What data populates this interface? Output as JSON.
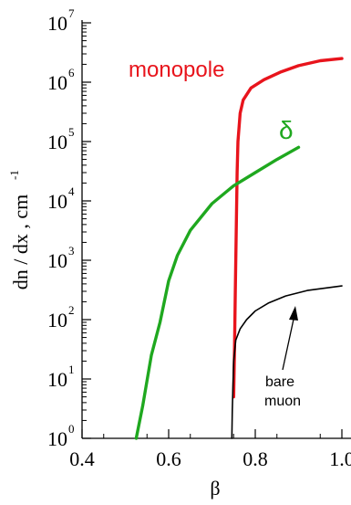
{
  "chart_data": {
    "type": "line",
    "title": "",
    "xlabel": "β",
    "ylabel": "dn / dx , cm",
    "ylabel_exponent": "-1",
    "xlim": [
      0.4,
      1.0
    ],
    "ylim_log10": [
      0,
      7
    ],
    "y_scale": "log",
    "x_tick_labels": [
      "0.4",
      "0.6",
      "0.8",
      "1.0"
    ],
    "y_ticks": [
      {
        "base": "10",
        "exp": "0"
      },
      {
        "base": "10",
        "exp": "1"
      },
      {
        "base": "10",
        "exp": "2"
      },
      {
        "base": "10",
        "exp": "3"
      },
      {
        "base": "10",
        "exp": "4"
      },
      {
        "base": "10",
        "exp": "5"
      },
      {
        "base": "10",
        "exp": "6"
      },
      {
        "base": "10",
        "exp": "7"
      }
    ],
    "grid": false,
    "series": [
      {
        "name": "monopole",
        "color": "#e8141c",
        "points": [
          [
            0.75,
            5.0
          ],
          [
            0.752,
            30
          ],
          [
            0.754,
            300
          ],
          [
            0.756,
            3000
          ],
          [
            0.758,
            30000
          ],
          [
            0.76,
            100000
          ],
          [
            0.765,
            300000
          ],
          [
            0.772,
            500000
          ],
          [
            0.79,
            800000
          ],
          [
            0.82,
            1100000
          ],
          [
            0.86,
            1500000
          ],
          [
            0.9,
            1900000
          ],
          [
            0.95,
            2300000
          ],
          [
            1.0,
            2500000
          ]
        ]
      },
      {
        "name": "δ",
        "color": "#1fa81f",
        "points": [
          [
            0.525,
            1.0
          ],
          [
            0.54,
            3.5
          ],
          [
            0.56,
            25
          ],
          [
            0.58,
            90
          ],
          [
            0.6,
            450
          ],
          [
            0.62,
            1200
          ],
          [
            0.65,
            3200
          ],
          [
            0.7,
            9000
          ],
          [
            0.75,
            18000
          ],
          [
            0.8,
            30000
          ],
          [
            0.85,
            50000
          ],
          [
            0.9,
            80000
          ]
        ]
      },
      {
        "name": "bare muon",
        "color": "#000000",
        "points": [
          [
            0.746,
            1.0
          ],
          [
            0.747,
            3
          ],
          [
            0.75,
            20
          ],
          [
            0.755,
            45
          ],
          [
            0.765,
            70
          ],
          [
            0.78,
            100
          ],
          [
            0.8,
            140
          ],
          [
            0.83,
            190
          ],
          [
            0.87,
            250
          ],
          [
            0.92,
            310
          ],
          [
            1.0,
            370
          ]
        ]
      }
    ],
    "annotations": {
      "monopole_label": "monopole",
      "delta_label": "δ",
      "muon_label_line1": "bare",
      "muon_label_line2": "muon"
    }
  }
}
